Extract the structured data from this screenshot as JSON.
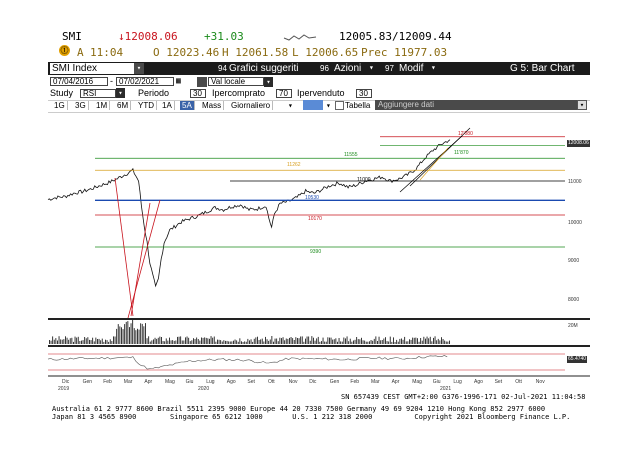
{
  "header": {
    "ticker": "SMI",
    "last": "↓12008.06",
    "change": "+31.03",
    "bid_ask": "12005.83/12009.44",
    "row2_badge": "A",
    "time": "11:04",
    "open": "O 12023.46",
    "high": "H 12061.58",
    "low": "L 12006.65",
    "prev": "Prec 11977.03"
  },
  "toolbar": {
    "security": "SMI Index",
    "menu_num1": "94",
    "menu1": "Grafici suggeriti",
    "menu_num2": "96",
    "menu2": "Azioni",
    "menu_num3": "97",
    "menu3": "Modif",
    "chart_type": "G 5: Bar Chart"
  },
  "dates": {
    "start": "07/04/2016",
    "end": "07/02/2021",
    "currency": "Val locale"
  },
  "study": {
    "label": "Study",
    "name": "RSI",
    "period_label": "Periodo",
    "period": "30",
    "overbought_label": "Ipercomprato",
    "overbought": "70",
    "oversold_label": "Ipervenduto",
    "oversold": "30"
  },
  "tabs": [
    "1G",
    "3G",
    "1M",
    "6M",
    "YTD",
    "1A",
    "5A",
    "Mass",
    "Giornaliero"
  ],
  "selected_tab": "5A",
  "table_label": "Tabella",
  "add_data_label": "Aggiungere dati",
  "chart_data": {
    "type": "line",
    "price_axis_labels": [
      "12000",
      "11000",
      "10000",
      "9000",
      "8000"
    ],
    "volume_axis_label": "20M",
    "x_tick_labels": [
      "Dic",
      "Gen",
      "Feb",
      "Mar",
      "Apr",
      "Mag",
      "Giu",
      "Lug",
      "Ago",
      "Set",
      "Ott",
      "Nov",
      "Dic",
      "Gen",
      "Feb",
      "Mar",
      "Apr",
      "Mag",
      "Giu",
      "Lug",
      "Ago",
      "Set",
      "Ott",
      "Nov"
    ],
    "year_labels": [
      "2019",
      "2020",
      "2021"
    ],
    "last_price_flag": "12008.06",
    "rsi_flag": "65.4740",
    "levels": [
      {
        "label": "12'080",
        "value": 12080,
        "color": "#c8141e"
      },
      {
        "label": "11'870",
        "value": 11870,
        "color": "#1a8a1a"
      },
      {
        "label": "11555",
        "value": 11555,
        "color": "#1a8a1a"
      },
      {
        "label": "11262",
        "value": 11262,
        "color": "#d8a020"
      },
      {
        "label": "11000",
        "value": 11000,
        "color": "#000000"
      },
      {
        "label": "10530",
        "value": 10530,
        "color": "#1a4ab0"
      },
      {
        "label": "10170",
        "value": 10170,
        "color": "#c8141e"
      },
      {
        "label": "9390",
        "value": 9390,
        "color": "#1a8a1a"
      }
    ],
    "price_series": [
      [
        0,
        10550
      ],
      [
        3,
        10600
      ],
      [
        6,
        10620
      ],
      [
        9,
        10700
      ],
      [
        12,
        10740
      ],
      [
        15,
        10800
      ],
      [
        18,
        10880
      ],
      [
        21,
        10950
      ],
      [
        24,
        11040
      ],
      [
        27,
        11150
      ],
      [
        30,
        11260
      ],
      [
        32,
        11000
      ],
      [
        33,
        10400
      ],
      [
        34,
        9900
      ],
      [
        35,
        9500
      ],
      [
        36,
        9000
      ],
      [
        37,
        8700
      ],
      [
        38,
        8400
      ],
      [
        39,
        8600
      ],
      [
        40,
        9100
      ],
      [
        41,
        9500
      ],
      [
        43,
        9800
      ],
      [
        45,
        9900
      ],
      [
        47,
        10000
      ],
      [
        50,
        10080
      ],
      [
        53,
        10150
      ],
      [
        56,
        10250
      ],
      [
        59,
        10350
      ],
      [
        62,
        10300
      ],
      [
        65,
        10380
      ],
      [
        68,
        10420
      ],
      [
        71,
        10300
      ],
      [
        74,
        10320
      ],
      [
        77,
        10400
      ],
      [
        78,
        10100
      ],
      [
        79,
        9870
      ],
      [
        80,
        10200
      ],
      [
        82,
        10450
      ],
      [
        85,
        10500
      ],
      [
        88,
        10600
      ],
      [
        91,
        10750
      ],
      [
        94,
        10700
      ],
      [
        97,
        10800
      ],
      [
        100,
        10900
      ],
      [
        103,
        10950
      ],
      [
        106,
        10850
      ],
      [
        109,
        10900
      ],
      [
        112,
        11000
      ],
      [
        115,
        11050
      ],
      [
        118,
        11100
      ],
      [
        121,
        11000
      ],
      [
        124,
        11050
      ],
      [
        127,
        11150
      ],
      [
        130,
        11300
      ],
      [
        133,
        11550
      ],
      [
        136,
        11750
      ],
      [
        139,
        11900
      ],
      [
        142,
        12008
      ]
    ],
    "rsi_series": [
      [
        0,
        55
      ],
      [
        10,
        58
      ],
      [
        20,
        60
      ],
      [
        30,
        62
      ],
      [
        33,
        35
      ],
      [
        36,
        22
      ],
      [
        40,
        30
      ],
      [
        50,
        50
      ],
      [
        60,
        55
      ],
      [
        70,
        53
      ],
      [
        78,
        42
      ],
      [
        85,
        58
      ],
      [
        95,
        57
      ],
      [
        105,
        55
      ],
      [
        115,
        60
      ],
      [
        125,
        58
      ],
      [
        135,
        65
      ],
      [
        142,
        65
      ]
    ]
  },
  "status": {
    "sn": "SN 657439 CEST GMT+2:00 G376-1996-171 02-Jul-2021 11:04:58",
    "footer1": "Australia 61 2 9777 8600 Brazil 5511 2395 9000 Europe 44 20 7330 7500 Germany 49 69 9204 1210 Hong Kong 852 2977 6000",
    "footer2": "Japan 81 3 4565 8900        Singapore 65 6212 1000       U.S. 1 212 318 2000          Copyright 2021 Bloomberg Finance L.P."
  }
}
